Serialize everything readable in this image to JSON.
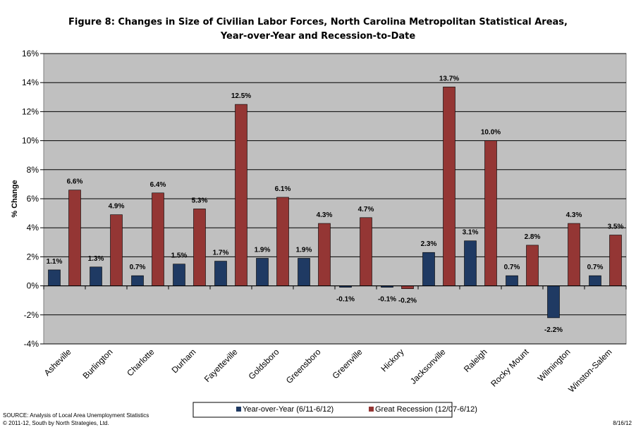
{
  "chart_data": {
    "type": "bar",
    "title_line1": "Figure 8: Changes in Size of Civilian Labor Forces, North Carolina Metropolitan Statistical Areas,",
    "title_line2": "Year-over-Year and Recession-to-Date",
    "ylabel": "% Change",
    "ylim": [
      -4,
      16
    ],
    "yticks": [
      "-4%",
      "-2%",
      "0%",
      "2%",
      "4%",
      "6%",
      "8%",
      "10%",
      "12%",
      "14%",
      "16%"
    ],
    "ytick_values": [
      -4,
      -2,
      0,
      2,
      4,
      6,
      8,
      10,
      12,
      14,
      16
    ],
    "grid": true,
    "plot_background": "#c0c0c0",
    "categories": [
      "Asheville",
      "Burlington",
      "Charlotte",
      "Durham",
      "Fayetteville",
      "Goldsboro",
      "Greensboro",
      "Greenville",
      "Hickory",
      "Jacksonville",
      "Raleigh",
      "Rocky Mount",
      "Wilmington",
      "Winston-Salem"
    ],
    "series": [
      {
        "name": "Year-over-Year (6/11-6/12)",
        "color": "#1f3a63",
        "values": [
          1.1,
          1.3,
          0.7,
          1.5,
          1.7,
          1.9,
          1.9,
          -0.1,
          -0.1,
          2.3,
          3.1,
          0.7,
          -2.2,
          0.7
        ],
        "labels": [
          "1.1%",
          "1.3%",
          "0.7%",
          "1.5%",
          "1.7%",
          "1.9%",
          "1.9%",
          "-0.1%",
          "-0.1%",
          "2.3%",
          "3.1%",
          "0.7%",
          "-2.2%",
          "0.7%"
        ]
      },
      {
        "name": "Great Recession (12/07-6/12)",
        "color": "#943634",
        "values": [
          6.6,
          4.9,
          6.4,
          5.3,
          12.5,
          6.1,
          4.3,
          4.7,
          -0.2,
          13.7,
          10.0,
          2.8,
          4.3,
          3.5
        ],
        "labels": [
          "6.6%",
          "4.9%",
          "6.4%",
          "5.3%",
          "12.5%",
          "6.1%",
          "4.3%",
          "4.7%",
          "-0.2%",
          "13.7%",
          "10.0%",
          "2.8%",
          "4.3%",
          "3.5%"
        ]
      }
    ],
    "legend_placement": "bottom"
  },
  "footer": {
    "source_line1": "SOURCE:  Analysis of Local Area Unemployment Statistics",
    "source_line2": "© 2011-12, South by North Strategies, Ltd.",
    "date": "8/16/12"
  }
}
